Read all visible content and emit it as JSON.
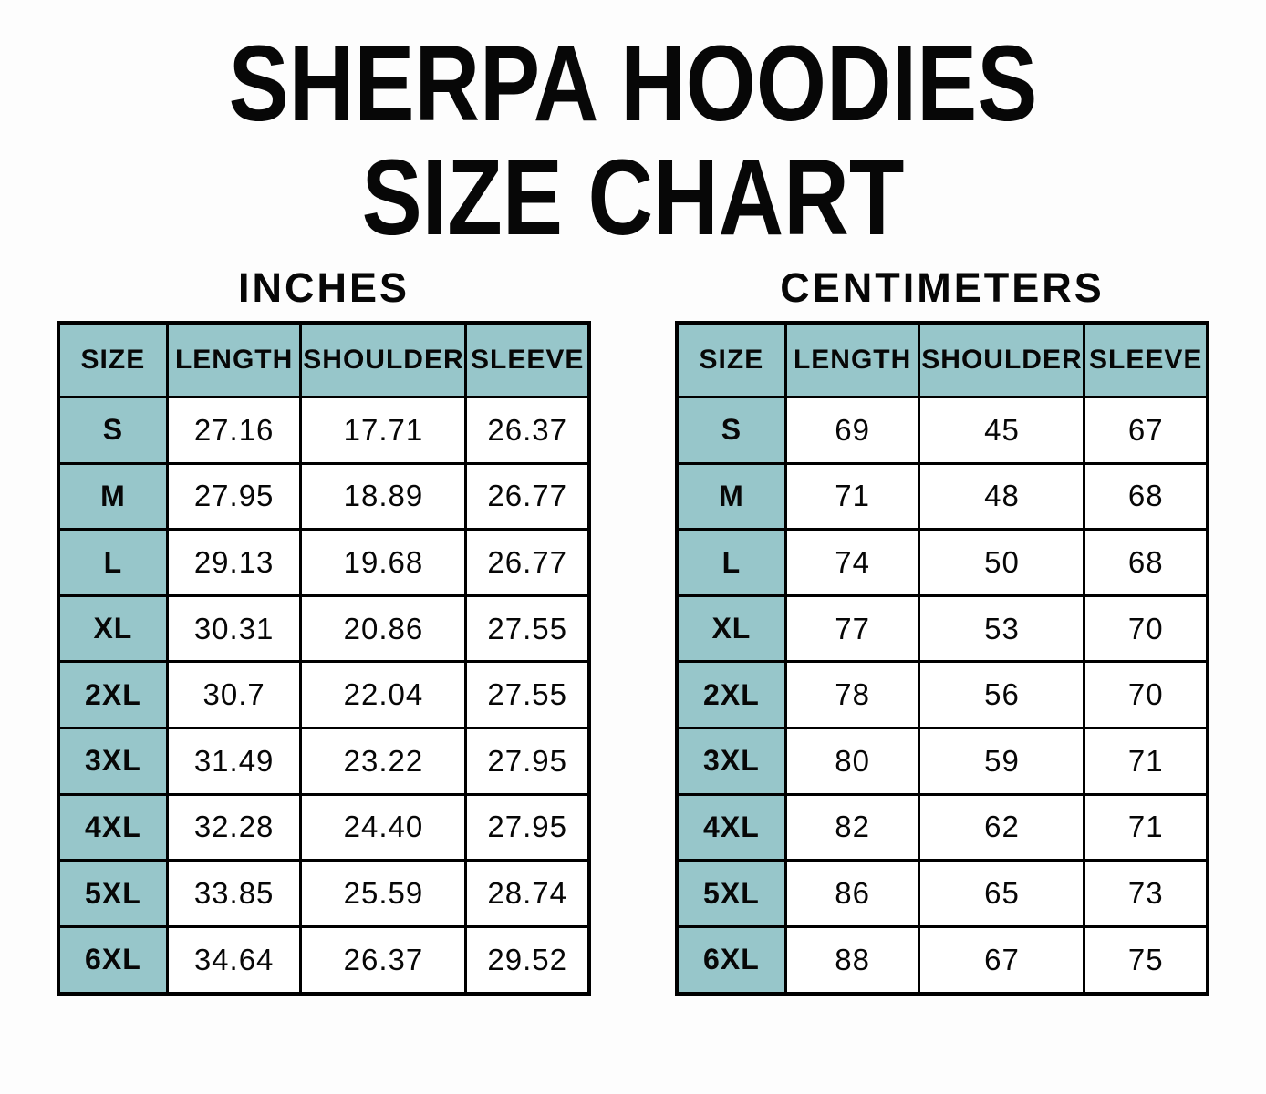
{
  "page_title": {
    "line1": "SHERPA HOODIES",
    "line2": "SIZE CHART"
  },
  "colors": {
    "header_fill": "#97c6ca",
    "table_border": "#000000",
    "page_background": "#fdfdfd",
    "text": "#070707"
  },
  "chart_data": [
    {
      "type": "table",
      "title": "INCHES",
      "columns": [
        "SIZE",
        "LENGTH",
        "SHOULDER",
        "SLEEVE"
      ],
      "rows": [
        [
          "S",
          "27.16",
          "17.71",
          "26.37"
        ],
        [
          "M",
          "27.95",
          "18.89",
          "26.77"
        ],
        [
          "L",
          "29.13",
          "19.68",
          "26.77"
        ],
        [
          "XL",
          "30.31",
          "20.86",
          "27.55"
        ],
        [
          "2XL",
          "30.7",
          "22.04",
          "27.55"
        ],
        [
          "3XL",
          "31.49",
          "23.22",
          "27.95"
        ],
        [
          "4XL",
          "32.28",
          "24.40",
          "27.95"
        ],
        [
          "5XL",
          "33.85",
          "25.59",
          "28.74"
        ],
        [
          "6XL",
          "34.64",
          "26.37",
          "29.52"
        ]
      ]
    },
    {
      "type": "table",
      "title": "CENTIMETERS",
      "columns": [
        "SIZE",
        "LENGTH",
        "SHOULDER",
        "SLEEVE"
      ],
      "rows": [
        [
          "S",
          "69",
          "45",
          "67"
        ],
        [
          "M",
          "71",
          "48",
          "68"
        ],
        [
          "L",
          "74",
          "50",
          "68"
        ],
        [
          "XL",
          "77",
          "53",
          "70"
        ],
        [
          "2XL",
          "78",
          "56",
          "70"
        ],
        [
          "3XL",
          "80",
          "59",
          "71"
        ],
        [
          "4XL",
          "82",
          "62",
          "71"
        ],
        [
          "5XL",
          "86",
          "65",
          "73"
        ],
        [
          "6XL",
          "88",
          "67",
          "75"
        ]
      ]
    }
  ]
}
